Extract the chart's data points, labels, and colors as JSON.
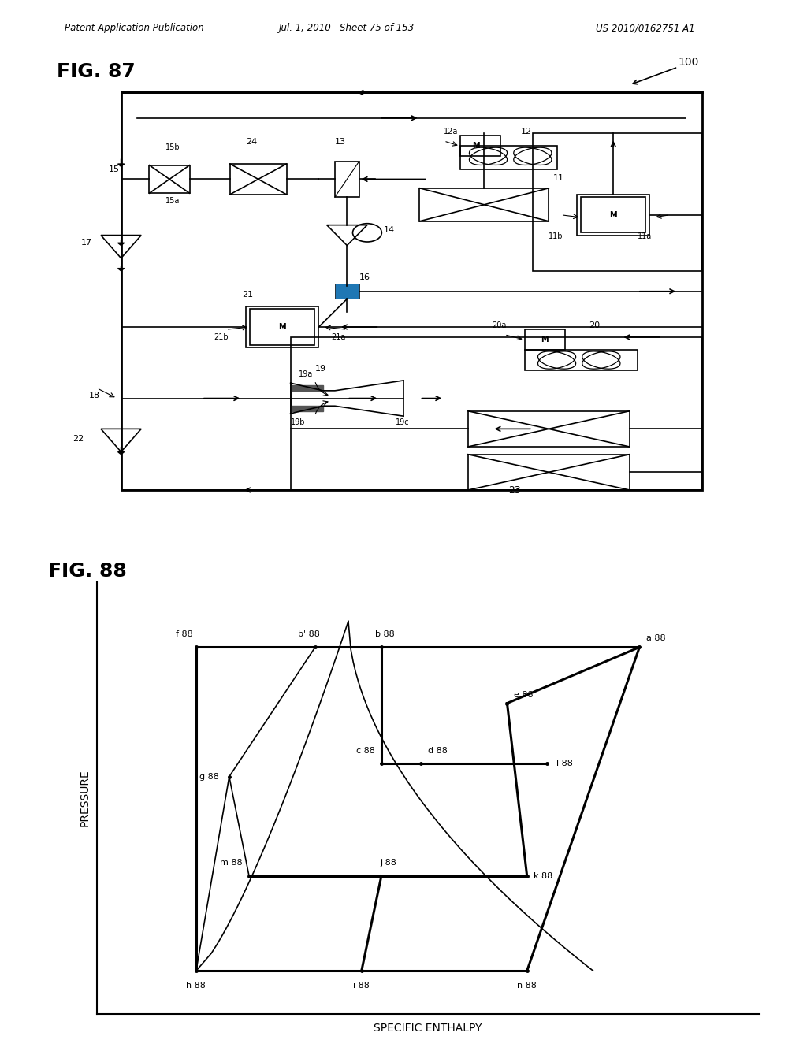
{
  "header_left": "Patent Application Publication",
  "header_mid": "Jul. 1, 2010   Sheet 75 of 153",
  "header_right": "US 2010/0162751 A1",
  "fig87_label": "FIG. 87",
  "fig88_label": "FIG. 88",
  "label_100": "100",
  "ylabel_88": "PRESSURE",
  "xlabel_88": "SPECIFIC ENTHALPY",
  "bg_color": "#ffffff",
  "line_color": "#000000"
}
